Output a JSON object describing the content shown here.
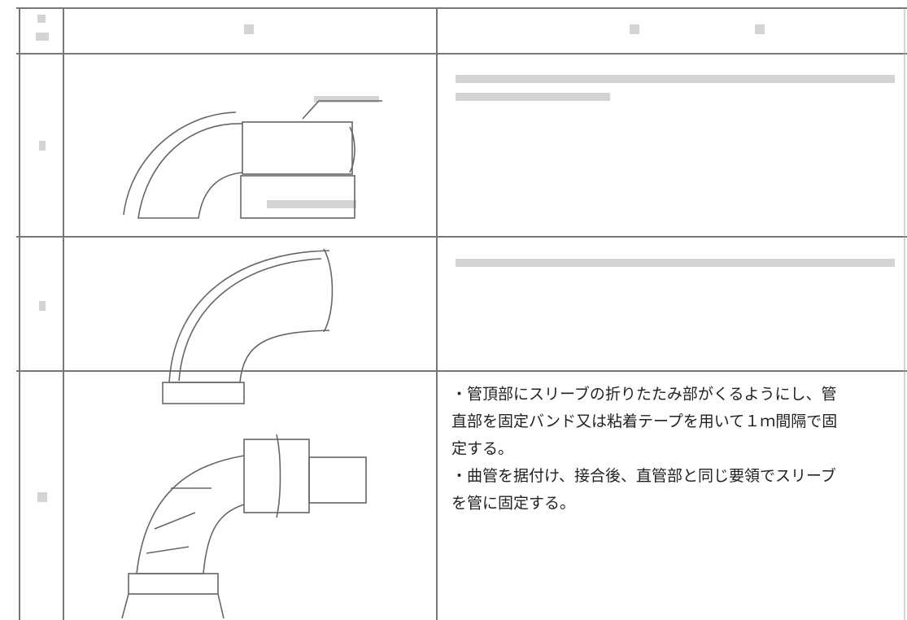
{
  "procedure_note": {
    "lines": [
      "・管頂部にスリーブの折りたたみ部がくるようにし、管",
      "直部を固定バンド又は粘着テープを用いて１ｍ間隔で固",
      "定する。",
      "・曲管を据付け、接合後、直管部と同じ要領でスリーブ",
      "を管に固定する。"
    ]
  }
}
